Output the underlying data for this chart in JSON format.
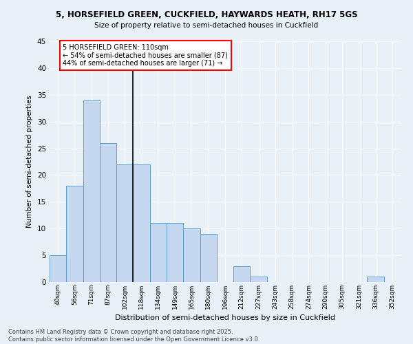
{
  "title1": "5, HORSEFIELD GREEN, CUCKFIELD, HAYWARDS HEATH, RH17 5GS",
  "title2": "Size of property relative to semi-detached houses in Cuckfield",
  "xlabel": "Distribution of semi-detached houses by size in Cuckfield",
  "ylabel": "Number of semi-detached properties",
  "categories": [
    "40sqm",
    "56sqm",
    "71sqm",
    "87sqm",
    "102sqm",
    "118sqm",
    "134sqm",
    "149sqm",
    "165sqm",
    "180sqm",
    "196sqm",
    "212sqm",
    "227sqm",
    "243sqm",
    "258sqm",
    "274sqm",
    "290sqm",
    "305sqm",
    "321sqm",
    "336sqm",
    "352sqm"
  ],
  "values": [
    5,
    18,
    34,
    26,
    22,
    22,
    11,
    11,
    10,
    9,
    0,
    3,
    1,
    0,
    0,
    0,
    0,
    0,
    0,
    1,
    0
  ],
  "bar_color": "#c5d8f0",
  "bar_edge_color": "#5a9fd4",
  "property_line_x": 4.5,
  "annotation_text": "5 HORSEFIELD GREEN: 110sqm\n← 54% of semi-detached houses are smaller (87)\n44% of semi-detached houses are larger (71) →",
  "annotation_box_color": "white",
  "annotation_box_edge_color": "red",
  "background_color": "#e8f0f8",
  "ylim": [
    0,
    45
  ],
  "yticks": [
    0,
    5,
    10,
    15,
    20,
    25,
    30,
    35,
    40,
    45
  ],
  "footer": "Contains HM Land Registry data © Crown copyright and database right 2025.\nContains public sector information licensed under the Open Government Licence v3.0."
}
